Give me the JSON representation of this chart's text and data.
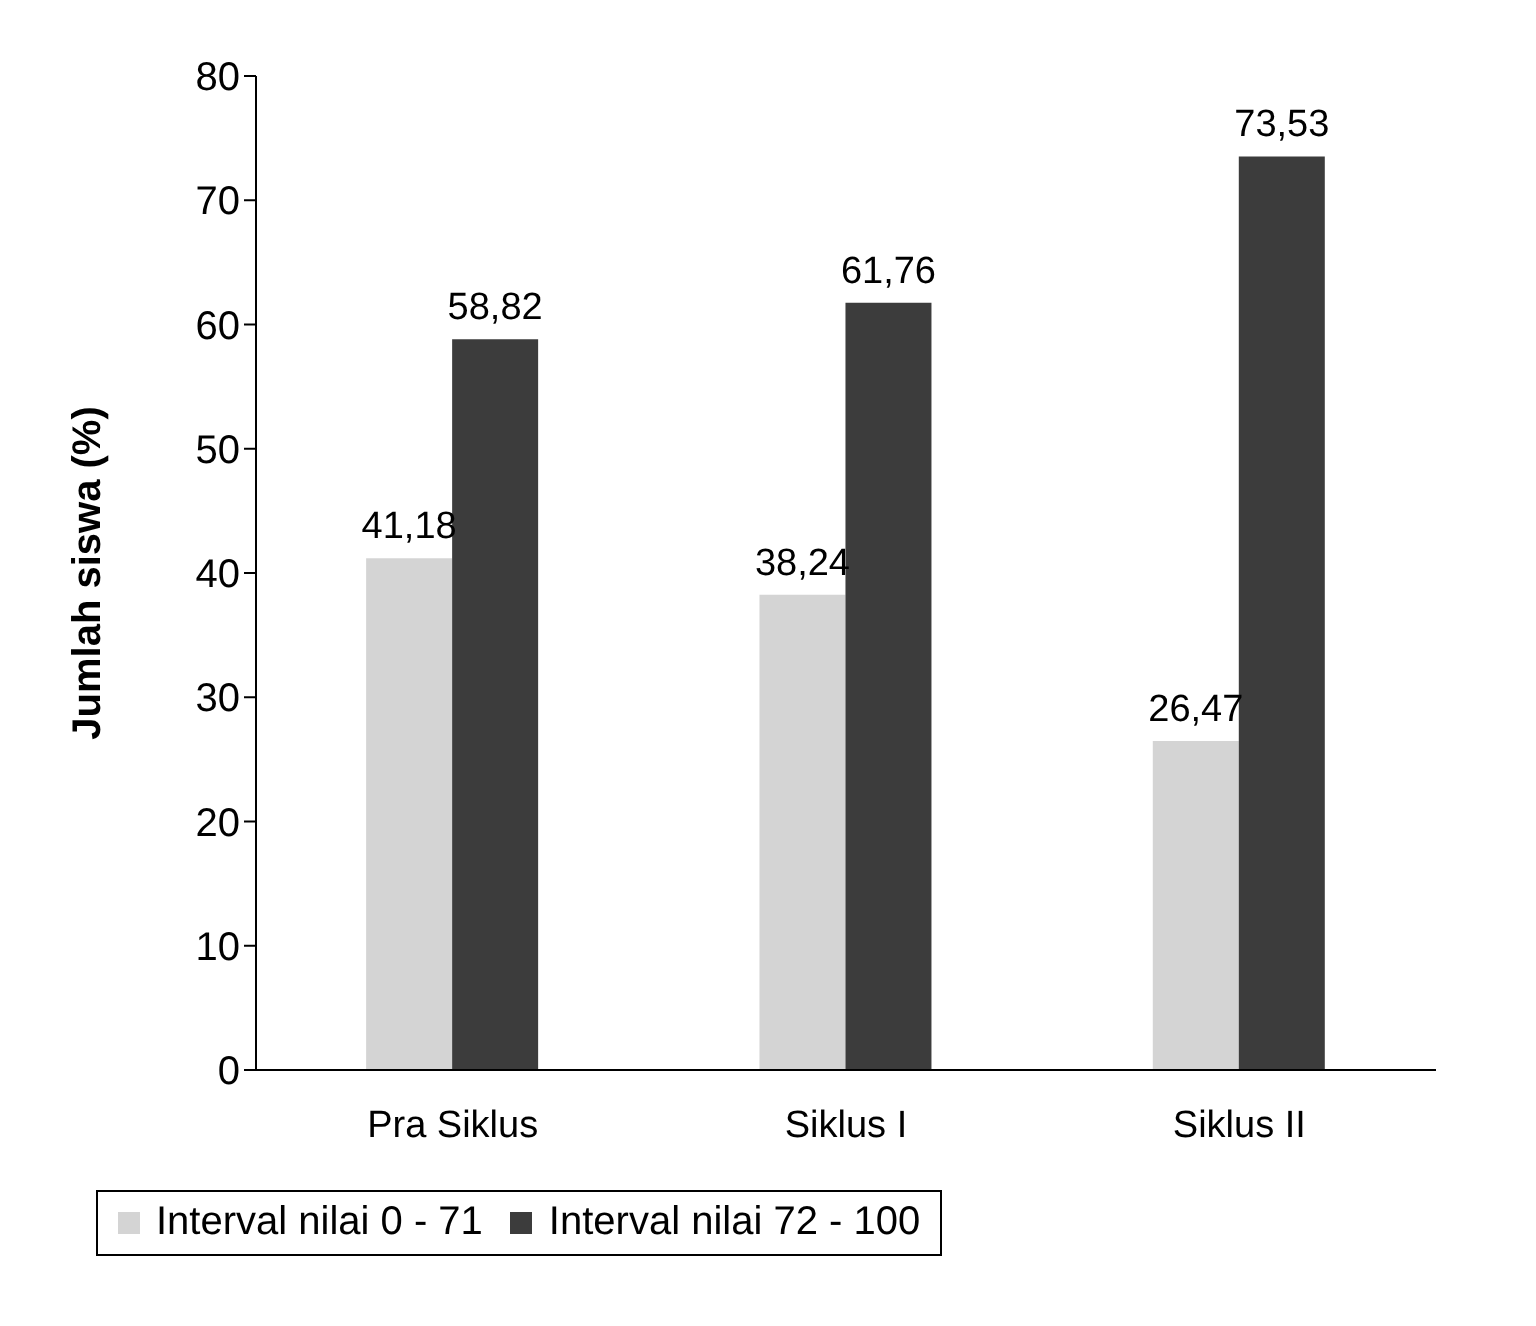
{
  "chart_data": {
    "type": "bar",
    "ylabel": "Jumlah siswa (%)",
    "categories": [
      "Pra Siklus",
      "Siklus I",
      "Siklus II"
    ],
    "series": [
      {
        "name": "Interval nilai 0 - 71",
        "color": "#d4d4d4",
        "values": [
          41.18,
          38.24,
          26.47
        ],
        "value_labels": [
          "41,18",
          "38,24",
          "26,47"
        ]
      },
      {
        "name": "Interval nilai 72 - 100",
        "color": "#3c3c3c",
        "values": [
          58.82,
          61.76,
          73.53
        ],
        "value_labels": [
          "58,82",
          "61,76",
          "73,53"
        ]
      }
    ],
    "ylim": [
      0,
      80
    ],
    "yticks": [
      0,
      10,
      20,
      30,
      40,
      50,
      60,
      70,
      80
    ],
    "grid": false,
    "legend": "bottom"
  }
}
